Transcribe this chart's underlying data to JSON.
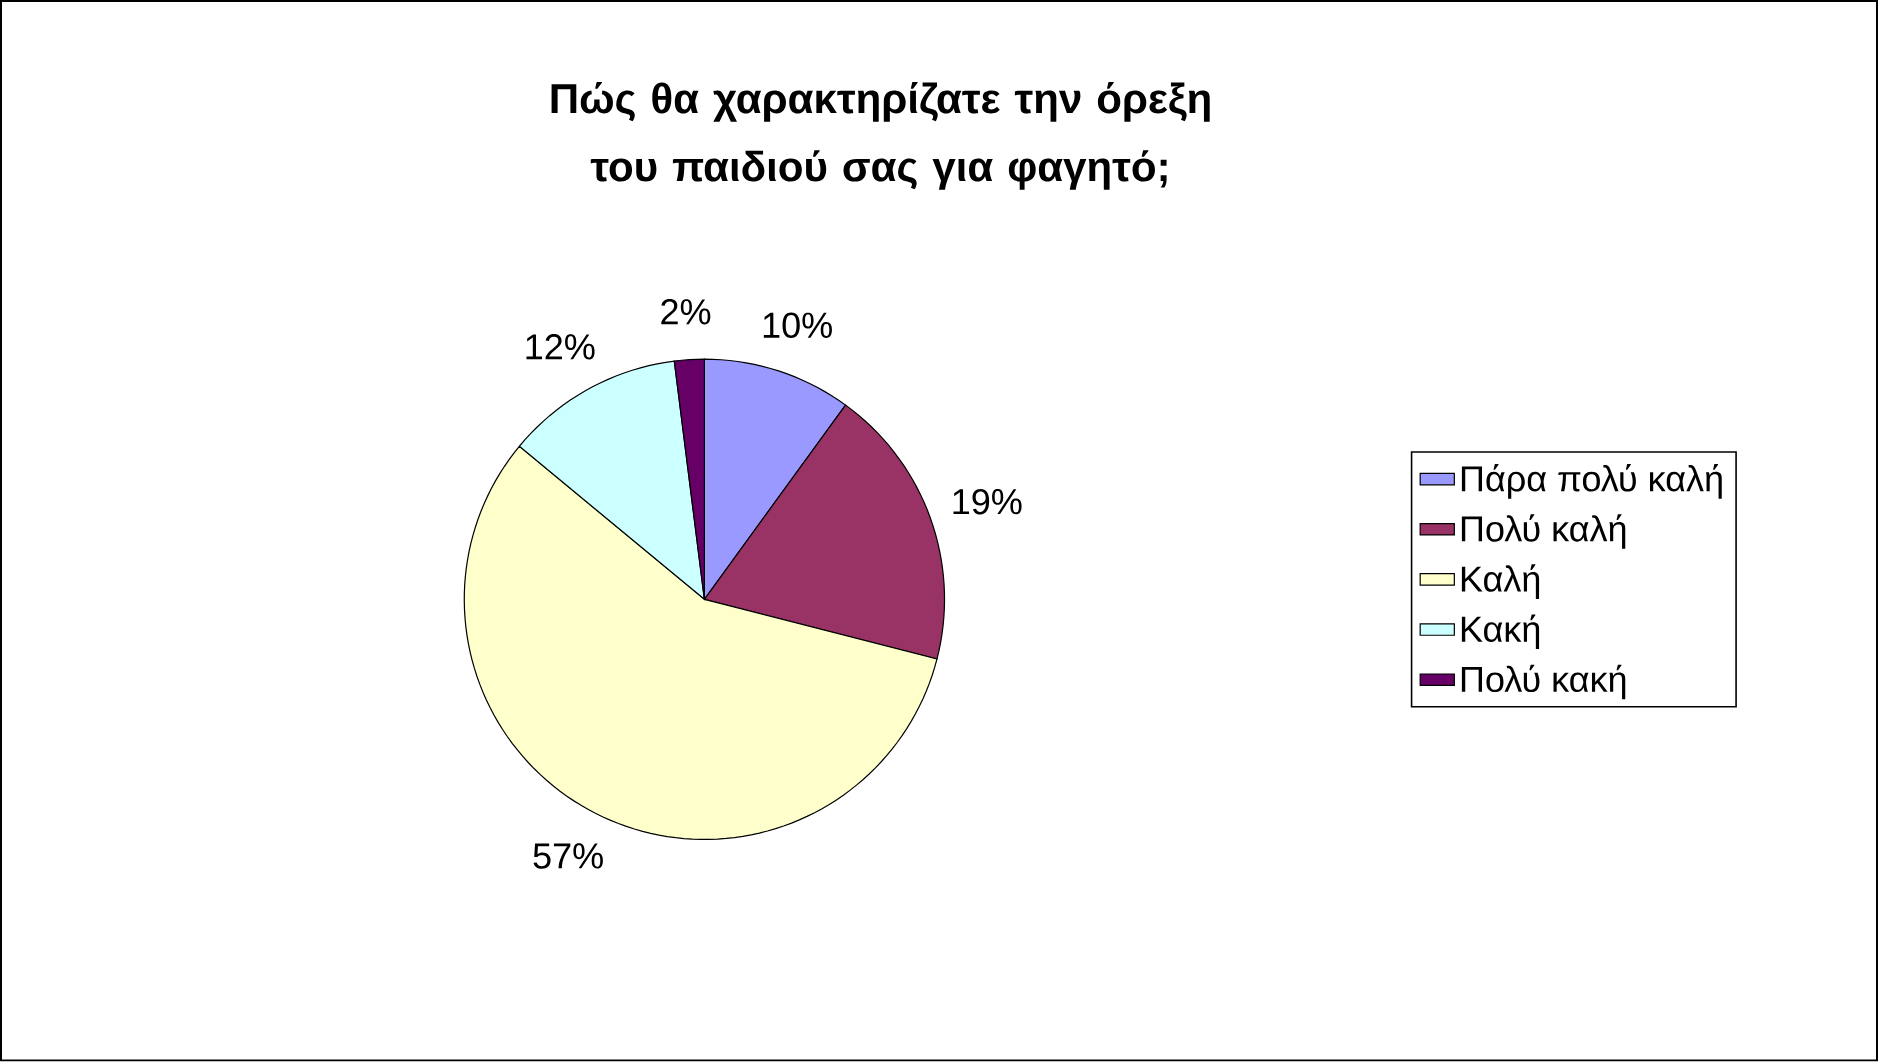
{
  "chart_data": {
    "type": "pie",
    "title": "Πώς θα χαρακτηρίζατε την όρεξη του παιδιού σας για φαγητό;",
    "categories": [
      "Πάρα πολύ καλή",
      "Πολύ καλή",
      "Καλή",
      "Κακή",
      "Πολύ κακή"
    ],
    "values": [
      10,
      19,
      57,
      12,
      2
    ],
    "value_labels": [
      "10%",
      "19%",
      "57%",
      "12%",
      "2%"
    ],
    "colors": [
      "#9999ff",
      "#993366",
      "#ffffcc",
      "#ccffff",
      "#660066"
    ],
    "legend": "right"
  }
}
